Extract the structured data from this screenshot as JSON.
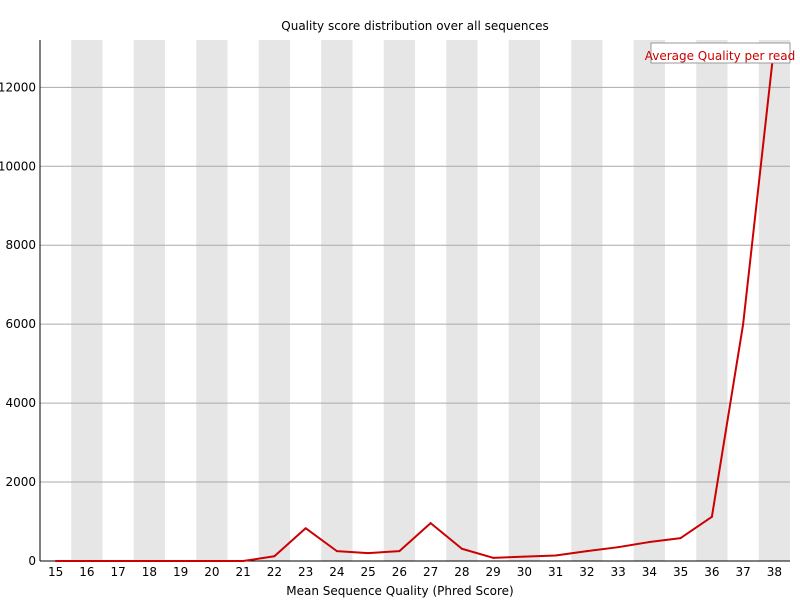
{
  "chart_data": {
    "type": "line",
    "title": "Quality score distribution over all sequences",
    "xlabel": "Mean Sequence Quality (Phred Score)",
    "ylabel": "",
    "categories": [
      "15",
      "16",
      "17",
      "18",
      "19",
      "20",
      "21",
      "22",
      "23",
      "24",
      "25",
      "26",
      "27",
      "28",
      "29",
      "30",
      "31",
      "32",
      "33",
      "34",
      "35",
      "36",
      "37",
      "38"
    ],
    "ylim": [
      0,
      13200
    ],
    "yticks": [
      0,
      2000,
      4000,
      6000,
      8000,
      10000,
      12000
    ],
    "series": [
      {
        "name": "Average Quality per read",
        "color": "#cc0000",
        "values": [
          0,
          0,
          0,
          0,
          0,
          0,
          0,
          120,
          830,
          250,
          200,
          250,
          960,
          310,
          80,
          110,
          140,
          250,
          350,
          480,
          580,
          1120,
          6000,
          13100
        ]
      }
    ],
    "grid": true,
    "legend_position": "top-right",
    "band_colors": [
      "#ffffff",
      "#e6e6e6"
    ]
  }
}
